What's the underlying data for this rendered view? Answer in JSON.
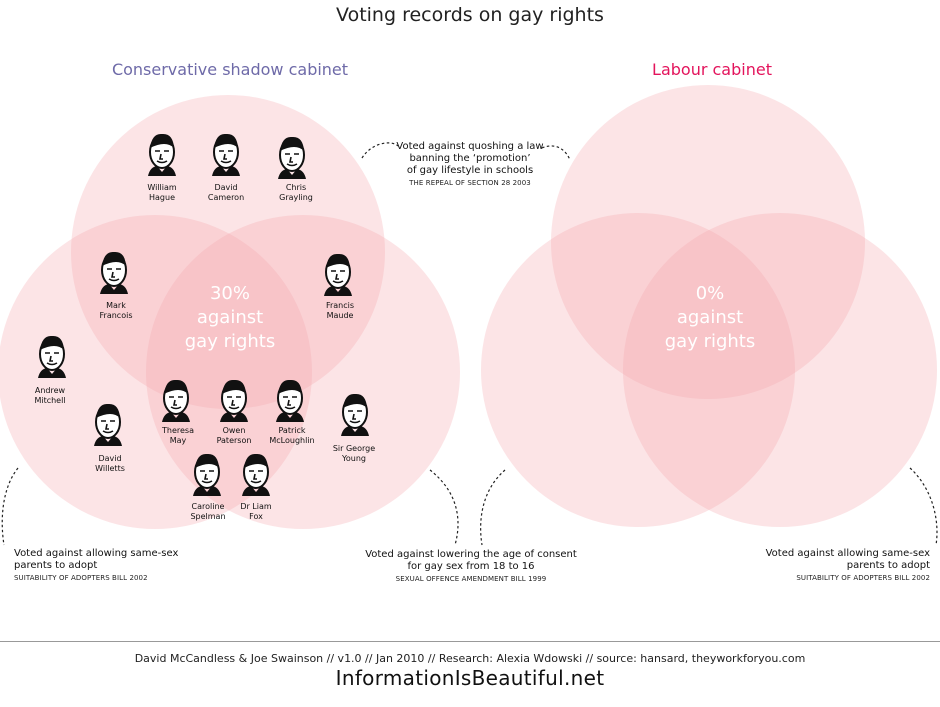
{
  "title": "Voting records on gay rights",
  "colors": {
    "conservative": "#6e6aa8",
    "labour": "#e3145c",
    "circle_fill": "#f4a6ad",
    "center_text": "#ffffff"
  },
  "panels": {
    "conservative": {
      "title": "Conservative shadow cabinet",
      "center_stat": "30%\nagainst\ngay rights"
    },
    "labour": {
      "title": "Labour cabinet",
      "center_stat": "0%\nagainst\ngay rights"
    }
  },
  "members": [
    {
      "name": "William\nHague"
    },
    {
      "name": "David\nCameron"
    },
    {
      "name": "Chris\nGrayling"
    },
    {
      "name": "Mark\nFrancois"
    },
    {
      "name": "Francis\nMaude"
    },
    {
      "name": "Andrew\nMitchell"
    },
    {
      "name": "David\nWilletts"
    },
    {
      "name": "Theresa\nMay"
    },
    {
      "name": "Owen\nPaterson"
    },
    {
      "name": "Patrick\nMcLoughlin"
    },
    {
      "name": "Sir George\nYoung"
    },
    {
      "name": "Caroline\nSpelman"
    },
    {
      "name": "Dr Liam\nFox"
    }
  ],
  "annotations": {
    "section28": {
      "text": "Voted against quoshing a law\nbanning the ‘promotion’\nof gay lifestyle in schools",
      "sub": "THE REPEAL OF SECTION 28 2003"
    },
    "adopt_left": {
      "text": "Voted against allowing same-sex\nparents to adopt",
      "sub": "SUITABILITY OF ADOPTERS BILL 2002"
    },
    "consent": {
      "text": "Voted against lowering the age of consent\nfor gay sex from 18 to 16",
      "sub": "SEXUAL OFFENCE AMENDMENT BILL 1999"
    },
    "adopt_right": {
      "text": "Voted against allowing same-sex\nparents to adopt",
      "sub": "SUITABILITY OF ADOPTERS BILL 2002"
    }
  },
  "footer": {
    "credit": "David McCandless & Joe Swainson // v1.0 // Jan 2010 // Research: Alexia Wdowski // source: hansard, theyworkforyou.com",
    "brand": "InformationIsBeautiful.net"
  }
}
